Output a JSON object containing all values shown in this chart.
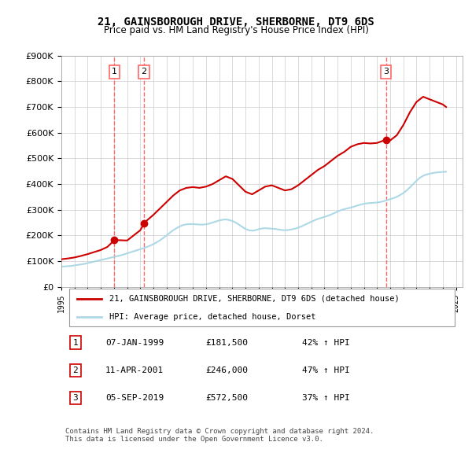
{
  "title": "21, GAINSBOROUGH DRIVE, SHERBORNE, DT9 6DS",
  "subtitle": "Price paid vs. HM Land Registry's House Price Index (HPI)",
  "ylim": [
    0,
    900000
  ],
  "yticks": [
    0,
    100000,
    200000,
    300000,
    400000,
    500000,
    600000,
    700000,
    800000,
    900000
  ],
  "sale_dates_num": [
    1999.03,
    2001.28,
    2019.67
  ],
  "sale_prices": [
    181500,
    246000,
    572500
  ],
  "sale_labels": [
    "1",
    "2",
    "3"
  ],
  "hpi_color": "#add8e6",
  "price_color": "#cc0000",
  "vline_color": "#ff6666",
  "legend_label_price": "21, GAINSBOROUGH DRIVE, SHERBORNE, DT9 6DS (detached house)",
  "legend_label_hpi": "HPI: Average price, detached house, Dorset",
  "table_data": [
    [
      "1",
      "07-JAN-1999",
      "£181,500",
      "42% ↑ HPI"
    ],
    [
      "2",
      "11-APR-2001",
      "£246,000",
      "47% ↑ HPI"
    ],
    [
      "3",
      "05-SEP-2019",
      "£572,500",
      "37% ↑ HPI"
    ]
  ],
  "footer": "Contains HM Land Registry data © Crown copyright and database right 2024.\nThis data is licensed under the Open Government Licence v3.0.",
  "hpi_data": {
    "years": [
      1995.0,
      1995.25,
      1995.5,
      1995.75,
      1996.0,
      1996.25,
      1996.5,
      1996.75,
      1997.0,
      1997.25,
      1997.5,
      1997.75,
      1998.0,
      1998.25,
      1998.5,
      1998.75,
      1999.0,
      1999.25,
      1999.5,
      1999.75,
      2000.0,
      2000.25,
      2000.5,
      2000.75,
      2001.0,
      2001.25,
      2001.5,
      2001.75,
      2002.0,
      2002.25,
      2002.5,
      2002.75,
      2003.0,
      2003.25,
      2003.5,
      2003.75,
      2004.0,
      2004.25,
      2004.5,
      2004.75,
      2005.0,
      2005.25,
      2005.5,
      2005.75,
      2006.0,
      2006.25,
      2006.5,
      2006.75,
      2007.0,
      2007.25,
      2007.5,
      2007.75,
      2008.0,
      2008.25,
      2008.5,
      2008.75,
      2009.0,
      2009.25,
      2009.5,
      2009.75,
      2010.0,
      2010.25,
      2010.5,
      2010.75,
      2011.0,
      2011.25,
      2011.5,
      2011.75,
      2012.0,
      2012.25,
      2012.5,
      2012.75,
      2013.0,
      2013.25,
      2013.5,
      2013.75,
      2014.0,
      2014.25,
      2014.5,
      2014.75,
      2015.0,
      2015.25,
      2015.5,
      2015.75,
      2016.0,
      2016.25,
      2016.5,
      2016.75,
      2017.0,
      2017.25,
      2017.5,
      2017.75,
      2018.0,
      2018.25,
      2018.5,
      2018.75,
      2019.0,
      2019.25,
      2019.5,
      2019.75,
      2020.0,
      2020.25,
      2020.5,
      2020.75,
      2021.0,
      2021.25,
      2021.5,
      2021.75,
      2022.0,
      2022.25,
      2022.5,
      2022.75,
      2023.0,
      2023.25,
      2023.5,
      2023.75,
      2024.0,
      2024.25
    ],
    "values": [
      78000,
      79000,
      80000,
      81000,
      83000,
      85000,
      87000,
      89000,
      92000,
      95000,
      98000,
      101000,
      104000,
      107000,
      110000,
      113000,
      116000,
      119000,
      122000,
      126000,
      130000,
      134000,
      138000,
      142000,
      146000,
      150000,
      155000,
      160000,
      166000,
      173000,
      181000,
      190000,
      200000,
      210000,
      220000,
      228000,
      235000,
      240000,
      243000,
      244000,
      244000,
      243000,
      242000,
      242000,
      243000,
      246000,
      250000,
      254000,
      258000,
      261000,
      262000,
      260000,
      256000,
      250000,
      242000,
      233000,
      225000,
      220000,
      218000,
      220000,
      224000,
      227000,
      228000,
      227000,
      226000,
      225000,
      223000,
      221000,
      220000,
      221000,
      223000,
      226000,
      230000,
      235000,
      241000,
      247000,
      253000,
      259000,
      264000,
      268000,
      272000,
      276000,
      281000,
      287000,
      293000,
      298000,
      302000,
      305000,
      308000,
      312000,
      316000,
      320000,
      323000,
      325000,
      326000,
      327000,
      328000,
      330000,
      333000,
      337000,
      341000,
      345000,
      350000,
      357000,
      365000,
      375000,
      387000,
      400000,
      413000,
      424000,
      432000,
      437000,
      440000,
      443000,
      445000,
      446000,
      447000,
      448000
    ]
  },
  "price_line_data": {
    "years": [
      1995.0,
      1995.5,
      1996.0,
      1996.5,
      1997.0,
      1997.5,
      1998.0,
      1998.5,
      1999.03,
      1999.5,
      2000.0,
      2000.5,
      2001.0,
      2001.28,
      2001.5,
      2002.0,
      2002.5,
      2003.0,
      2003.5,
      2004.0,
      2004.5,
      2005.0,
      2005.5,
      2006.0,
      2006.5,
      2007.0,
      2007.5,
      2008.0,
      2008.5,
      2009.0,
      2009.5,
      2010.0,
      2010.5,
      2011.0,
      2011.5,
      2012.0,
      2012.5,
      2013.0,
      2013.5,
      2014.0,
      2014.5,
      2015.0,
      2015.5,
      2016.0,
      2016.5,
      2017.0,
      2017.5,
      2018.0,
      2018.5,
      2019.0,
      2019.67,
      2020.0,
      2020.5,
      2021.0,
      2021.5,
      2022.0,
      2022.5,
      2023.0,
      2023.5,
      2024.0,
      2024.25
    ],
    "values": [
      107000,
      110000,
      114000,
      120000,
      127000,
      135000,
      143000,
      155000,
      181500,
      181000,
      180000,
      200000,
      220000,
      246000,
      258000,
      280000,
      305000,
      330000,
      355000,
      375000,
      385000,
      388000,
      385000,
      390000,
      400000,
      415000,
      430000,
      420000,
      395000,
      370000,
      360000,
      375000,
      390000,
      395000,
      385000,
      375000,
      380000,
      395000,
      415000,
      435000,
      455000,
      470000,
      490000,
      510000,
      525000,
      545000,
      555000,
      560000,
      558000,
      560000,
      572500,
      570000,
      590000,
      630000,
      680000,
      720000,
      740000,
      730000,
      720000,
      710000,
      700000
    ]
  }
}
